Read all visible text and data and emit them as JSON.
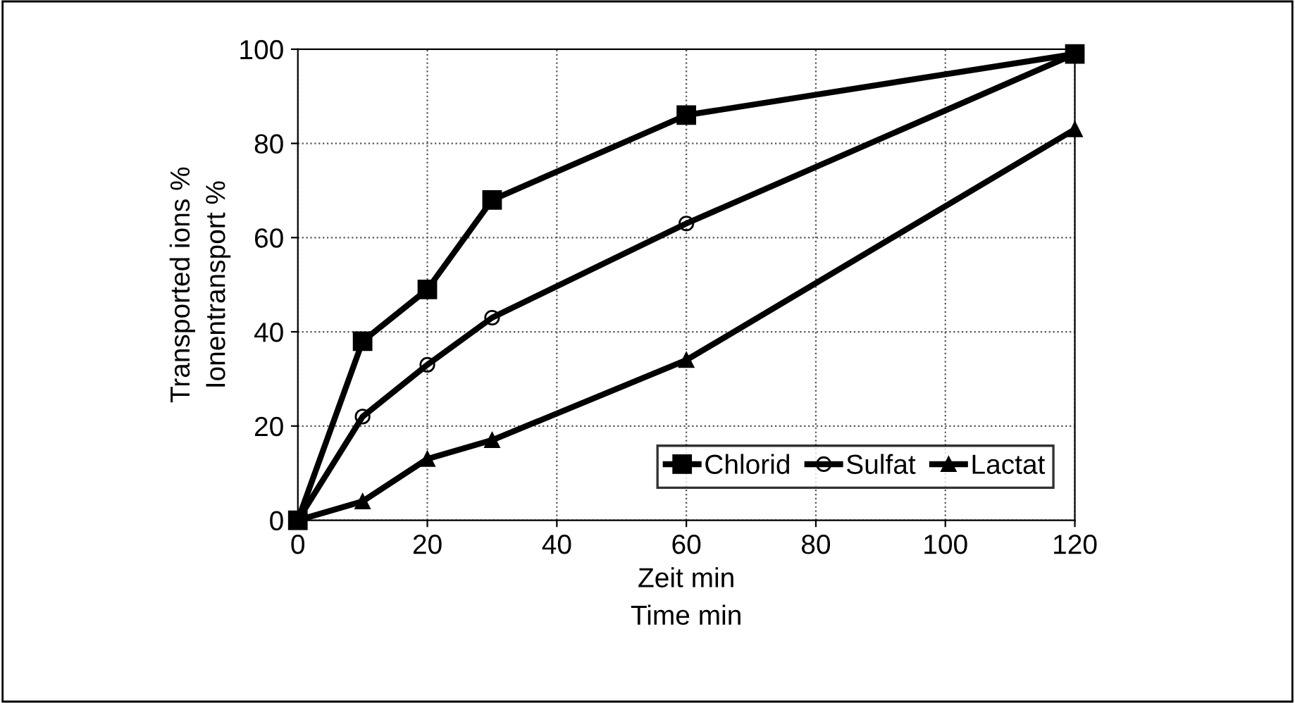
{
  "chart_data": {
    "type": "line",
    "xlabel": "Zeit min\nTime min",
    "ylabel": "Transported ions %\nIonentransport %",
    "x": [
      0,
      10,
      20,
      30,
      60,
      120
    ],
    "series": [
      {
        "name": "Chlorid",
        "color": "#000000",
        "marker": "square",
        "values": [
          0,
          38,
          49,
          68,
          86,
          99
        ]
      },
      {
        "name": "Sulfat",
        "color": "#000000",
        "marker": "circle",
        "values": [
          0,
          22,
          33,
          43,
          63,
          99
        ]
      },
      {
        "name": "Lactat",
        "color": "#000000",
        "marker": "triangle",
        "values": [
          0,
          4,
          13,
          17,
          34,
          83
        ]
      }
    ],
    "xlim": [
      0,
      120
    ],
    "xticks": [
      0,
      20,
      40,
      60,
      80,
      100,
      120
    ],
    "ylim": [
      0,
      100
    ],
    "yticks": [
      0,
      20,
      40,
      60,
      80,
      100
    ],
    "grid": true,
    "legend": "bottom right",
    "line_style": "solid"
  }
}
